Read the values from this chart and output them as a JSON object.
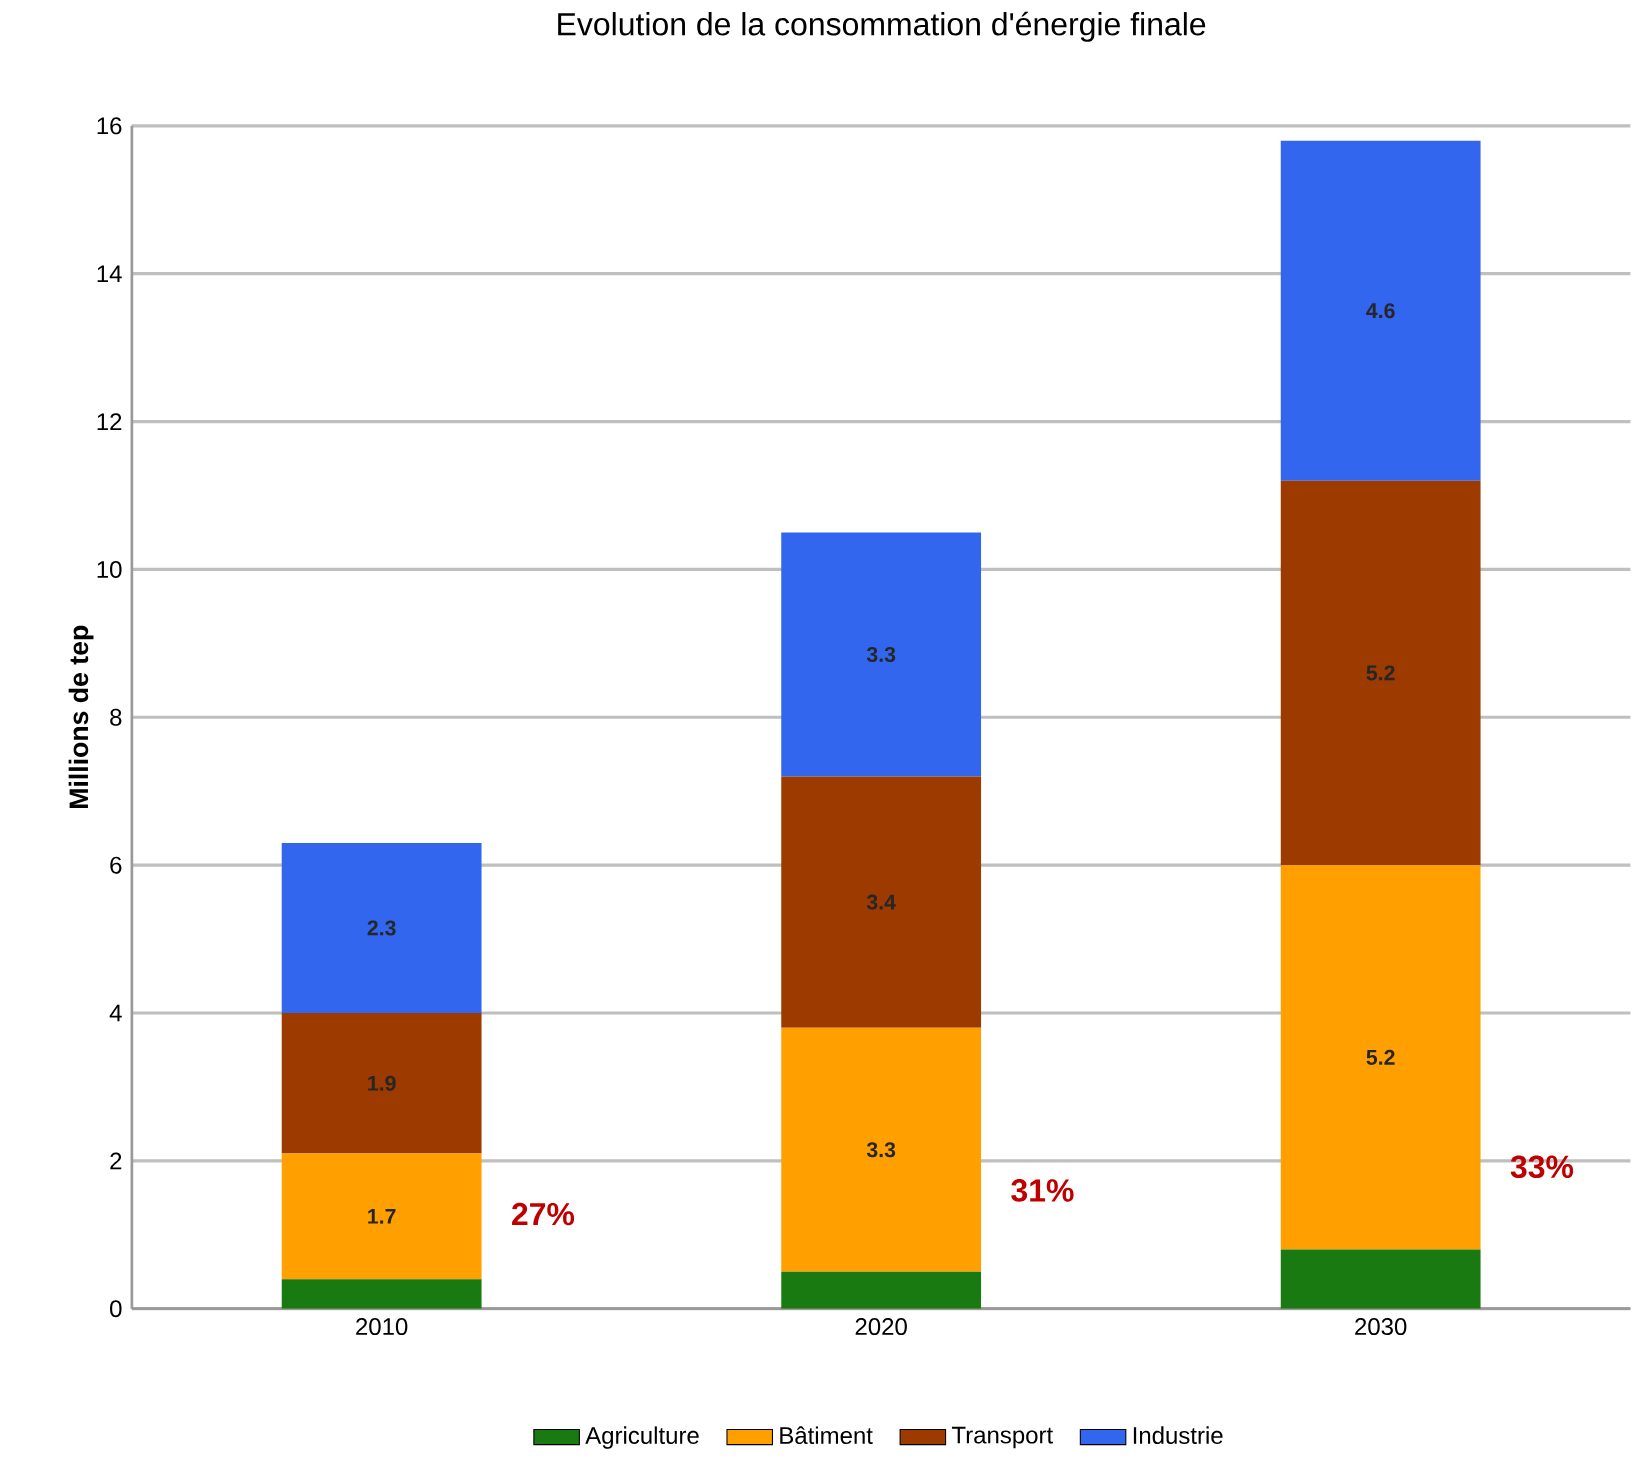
{
  "chart_data": {
    "type": "bar",
    "stacked": true,
    "title": "Evolution de la consommation d'énergie finale",
    "ylabel": "Millions de tep",
    "categories": [
      "2010",
      "2020",
      "2030"
    ],
    "series": [
      {
        "name": "Agriculture",
        "color": "#1a7a12",
        "values": [
          0.4,
          0.5,
          0.8
        ]
      },
      {
        "name": "Bâtiment",
        "color": "#ffa000",
        "values": [
          1.7,
          3.3,
          5.2
        ],
        "value_labels": [
          "1.7",
          "3.3",
          "5.2"
        ]
      },
      {
        "name": "Transport",
        "color": "#9c3a00",
        "values": [
          1.9,
          3.4,
          5.2
        ],
        "value_labels": [
          "1.9",
          "3.4",
          "5.2"
        ]
      },
      {
        "name": "Industrie",
        "color": "#3366ee",
        "values": [
          2.3,
          3.3,
          4.6
        ],
        "value_labels": [
          "2.3",
          "3.3",
          "4.6"
        ]
      }
    ],
    "ylim": [
      0,
      16
    ],
    "yticks": [
      0,
      2,
      4,
      6,
      8,
      10,
      12,
      14,
      16
    ],
    "grid": "y",
    "legend": "bottom",
    "annotations": [
      "27%",
      "31%",
      "33%"
    ]
  }
}
